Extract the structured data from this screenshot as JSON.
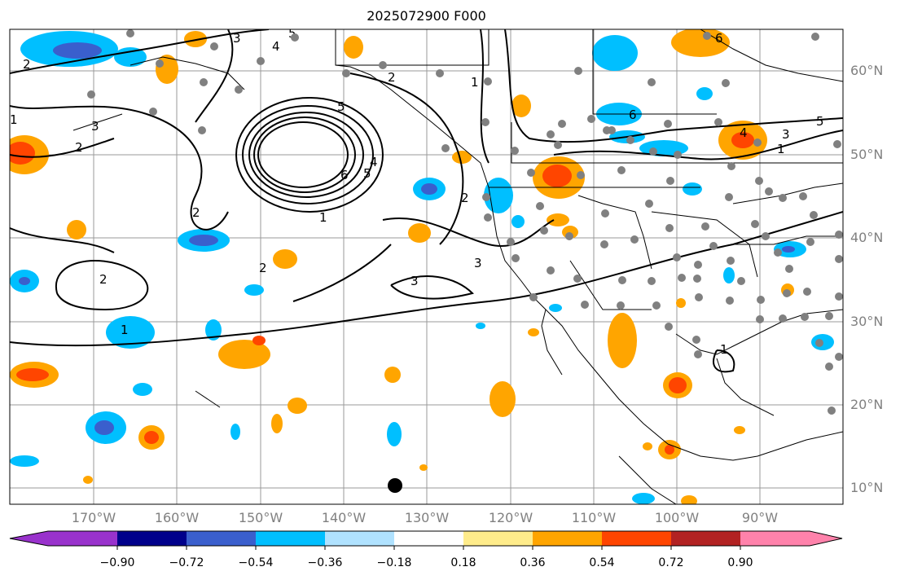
{
  "title": "2025072900 F000",
  "lat_labels": [
    "60°N",
    "50°N",
    "40°N",
    "30°N",
    "20°N",
    "10°N"
  ],
  "lon_labels": [
    "170°W",
    "160°W",
    "150°W",
    "140°W",
    "130°W",
    "120°W",
    "110°W",
    "100°W",
    "90°W"
  ],
  "contour_labels": [
    "1",
    "2",
    "3",
    "4",
    "5",
    "6"
  ],
  "colorbar": {
    "ticks": [
      "−0.90",
      "−0.72",
      "−0.54",
      "−0.36",
      "−0.18",
      "0.18",
      "0.36",
      "0.54",
      "0.72",
      "0.90"
    ],
    "colors": [
      "#9932cc",
      "#00008b",
      "#3a5fcd",
      "#00bfff",
      "#b0e2ff",
      "#ffffff",
      "#ffec8b",
      "#ffa500",
      "#ff4500",
      "#b22222",
      "#ff82ab"
    ]
  },
  "colors": {
    "land_border": "#000000",
    "grid": "#9a9a9a",
    "station": "#808080",
    "axis_label": "#808080"
  }
}
